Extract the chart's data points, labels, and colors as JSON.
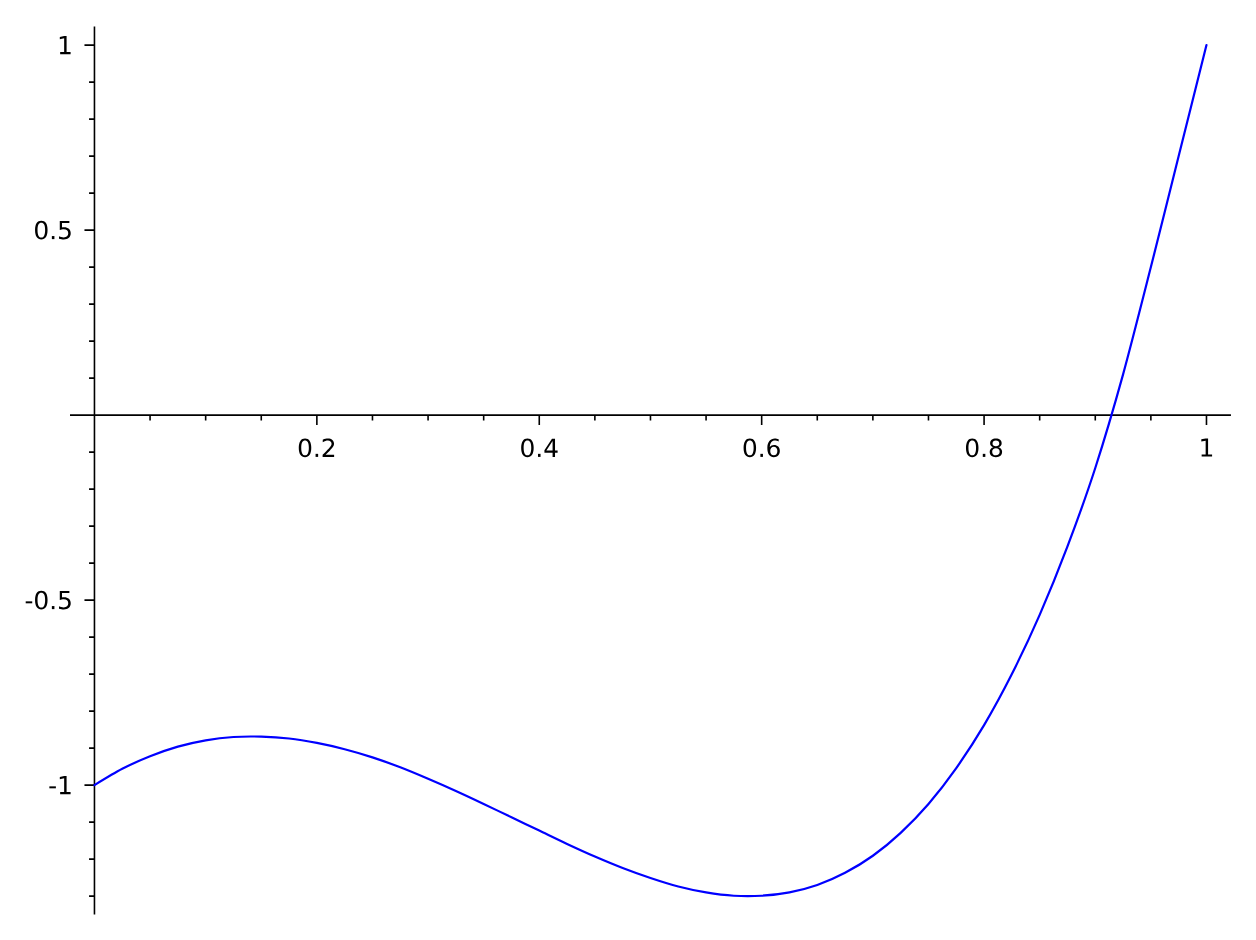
{
  "chart_data": {
    "type": "line",
    "color": "#0000ff",
    "x": [
      0,
      0.025,
      0.05,
      0.075,
      0.1,
      0.125,
      0.15,
      0.175,
      0.2,
      0.225,
      0.25,
      0.275,
      0.3,
      0.325,
      0.35,
      0.375,
      0.4,
      0.425,
      0.45,
      0.475,
      0.5,
      0.525,
      0.55,
      0.575,
      0.6,
      0.625,
      0.65,
      0.675,
      0.7,
      0.725,
      0.75,
      0.775,
      0.8,
      0.825,
      0.85,
      0.875,
      0.9,
      0.925,
      0.95,
      0.975,
      1
    ],
    "values": [
      -1,
      -0.956,
      -0.922,
      -0.896,
      -0.879,
      -0.87,
      -0.869,
      -0.874,
      -0.886,
      -0.903,
      -0.925,
      -0.952,
      -0.983,
      -1.016,
      -1.051,
      -1.087,
      -1.123,
      -1.159,
      -1.193,
      -1.224,
      -1.251,
      -1.274,
      -1.29,
      -1.299,
      -1.299,
      -1.29,
      -1.27,
      -1.237,
      -1.191,
      -1.129,
      -1.051,
      -0.954,
      -0.838,
      -0.7,
      -0.54,
      -0.355,
      -0.143,
      0.11,
      0.4,
      0.7,
      1
    ],
    "xlim": [
      -0.022,
      1.022
    ],
    "ylim": [
      -1.35,
      1.05
    ],
    "xticks": [
      {
        "value": 0.05,
        "label": null
      },
      {
        "value": 0.1,
        "label": null
      },
      {
        "value": 0.15,
        "label": null
      },
      0.2,
      {
        "value": 0.25,
        "label": null
      },
      {
        "value": 0.3,
        "label": null
      },
      {
        "value": 0.35,
        "label": null
      },
      0.4,
      {
        "value": 0.45,
        "label": null
      },
      {
        "value": 0.5,
        "label": null
      },
      {
        "value": 0.55,
        "label": null
      },
      0.6,
      {
        "value": 0.65,
        "label": null
      },
      {
        "value": 0.7,
        "label": null
      },
      {
        "value": 0.75,
        "label": null
      },
      0.8,
      {
        "value": 0.85,
        "label": null
      },
      {
        "value": 0.9,
        "label": null
      },
      {
        "value": 0.95,
        "label": null
      },
      1
    ],
    "yticks": [
      {
        "value": -1.3,
        "label": null
      },
      {
        "value": -1.2,
        "label": null
      },
      {
        "value": -1.1,
        "label": null
      },
      -1,
      {
        "value": -0.9,
        "label": null
      },
      {
        "value": -0.8,
        "label": null
      },
      {
        "value": -0.7,
        "label": null
      },
      {
        "value": -0.6,
        "label": null
      },
      -0.5,
      {
        "value": -0.4,
        "label": null
      },
      {
        "value": -0.3,
        "label": null
      },
      {
        "value": -0.2,
        "label": null
      },
      {
        "value": -0.1,
        "label": null
      },
      {
        "value": 0.1,
        "label": null
      },
      {
        "value": 0.2,
        "label": null
      },
      {
        "value": 0.3,
        "label": null
      },
      {
        "value": 0.4,
        "label": null
      },
      0.5,
      {
        "value": 0.6,
        "label": null
      },
      {
        "value": 0.7,
        "label": null
      },
      {
        "value": 0.8,
        "label": null
      },
      {
        "value": 0.9,
        "label": null
      },
      1
    ]
  }
}
